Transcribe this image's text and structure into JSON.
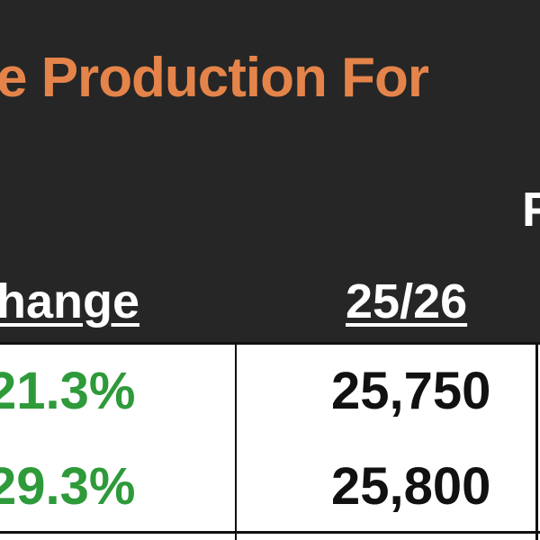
{
  "title": "e Production For",
  "header_fragment": "F",
  "table": {
    "headers": [
      "hange",
      "25/26"
    ],
    "rows": [
      [
        "21.3%",
        "25,750"
      ],
      [
        "29.3%",
        "25,800"
      ]
    ]
  }
}
